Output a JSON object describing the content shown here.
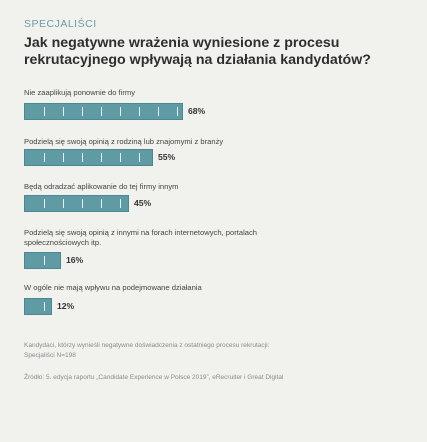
{
  "header": {
    "kicker": "SPECJALIŚCI",
    "title": "Jak negatywne wrażenia wyniesione z procesu rekrutacyjnego wpływają na działania kandydatów?"
  },
  "chart_data": {
    "type": "bar",
    "orientation": "horizontal",
    "title": "Jak negatywne wrażenia wyniesione z procesu rekrutacyjnego wpływają na działania kandydatów?",
    "unit": "%",
    "ylim": [
      0,
      100
    ],
    "grid": false,
    "legend": "none",
    "categories": [
      "Nie zaaplikują ponownie do firmy",
      "Podzielą się swoją opinią z rodziną lub znajomymi z branży",
      "Będą odradzać aplikowanie do tej firmy innym",
      "Podzielą się swoją opinią z innymi na forach internetowych, portalach społecznościowych itp.",
      "W ogóle nie mają wpływu na podejmowane działania"
    ],
    "values": [
      68,
      55,
      45,
      16,
      12
    ],
    "value_labels": [
      "68%",
      "55%",
      "45%",
      "16%",
      "12%"
    ],
    "bar_color": "#5f9ba5"
  },
  "footer": {
    "note_line1": "Kandydaci, którzy wynieśli negatywne doświadczenia z ostatniego procesu rekrutacji:",
    "note_line2": "Specjaliści N=198",
    "source": "Źródło: 5. edycja raportu „Candidate Experience w Polsce 2019”, eRecruiter i Great Digital"
  },
  "colors": {
    "accent": "#6a9ca8",
    "bar": "#5f9ba5",
    "background": "#f1f1ee"
  }
}
